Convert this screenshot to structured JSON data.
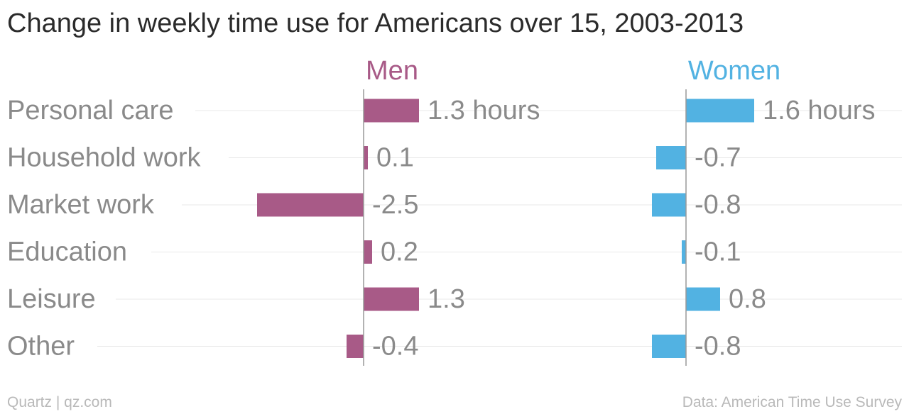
{
  "title": "Change in weekly time use for Americans over 15, 2003-2013",
  "footer": {
    "source_left": "Quartz | qz.com",
    "source_right": "Data: American Time Use Survey"
  },
  "chart_data": {
    "type": "bar",
    "orientation": "horizontal",
    "categories": [
      "Personal care",
      "Household work",
      "Market work",
      "Education",
      "Leisure",
      "Other"
    ],
    "series": [
      {
        "name": "Men",
        "color": "#a85a87",
        "values": [
          1.3,
          0.1,
          -2.5,
          0.2,
          1.3,
          -0.4
        ],
        "labels": [
          "1.3 hours",
          "0.1",
          "-2.5",
          "0.2",
          "1.3",
          "-0.4"
        ]
      },
      {
        "name": "Women",
        "color": "#52b2e2",
        "values": [
          1.6,
          -0.7,
          -0.8,
          -0.1,
          0.8,
          -0.8
        ],
        "labels": [
          "1.6 hours",
          "-0.7",
          "-0.8",
          "-0.1",
          "0.8",
          "-0.8"
        ]
      }
    ],
    "xlabel": "",
    "ylabel": "",
    "grid": true,
    "legend": "panel titles"
  }
}
